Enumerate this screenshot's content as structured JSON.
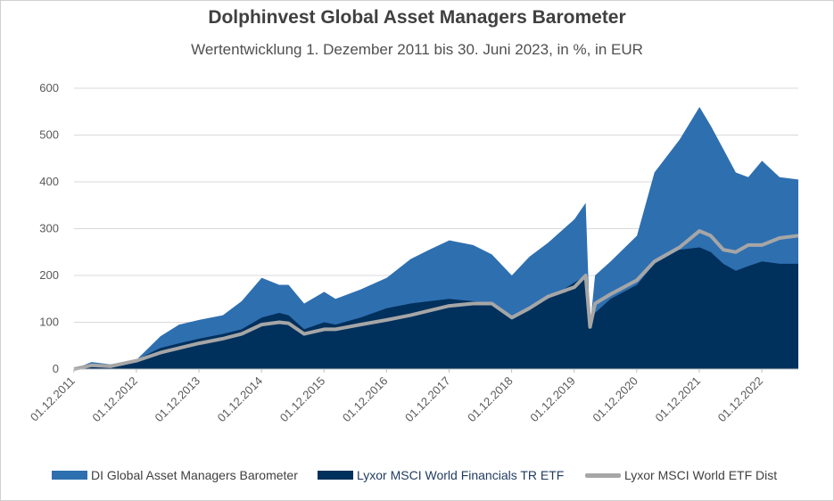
{
  "chart_data": {
    "type": "area",
    "title": "Dolphinvest Global Asset Managers Barometer",
    "subtitle": "Wertentwicklung 1. Dezember 2011 bis 30. Juni 2023, in %, in EUR",
    "xlabel": "",
    "ylabel": "",
    "ylim": [
      0,
      600
    ],
    "y_ticks": [
      "0",
      "100",
      "200",
      "300",
      "400",
      "500",
      "600"
    ],
    "x_ticks": [
      "01.12.2011",
      "01.12.2012",
      "01.12.2013",
      "01.12.2014",
      "01.12.2015",
      "01.12.2016",
      "01.12.2017",
      "01.12.2018",
      "01.12.2019",
      "01.12.2020",
      "01.12.2021",
      "01.12.2022"
    ],
    "grid": true,
    "legend_position": "bottom",
    "x": [
      2011.92,
      2012.2,
      2012.5,
      2012.92,
      2013.3,
      2013.6,
      2013.92,
      2014.3,
      2014.6,
      2014.92,
      2015.2,
      2015.35,
      2015.6,
      2015.92,
      2016.1,
      2016.5,
      2016.92,
      2017.3,
      2017.6,
      2017.92,
      2018.3,
      2018.6,
      2018.92,
      2019.2,
      2019.5,
      2019.92,
      2020.1,
      2020.17,
      2020.25,
      2020.5,
      2020.92,
      2021.2,
      2021.6,
      2021.92,
      2022.1,
      2022.3,
      2022.5,
      2022.7,
      2022.92,
      2023.2,
      2023.5
    ],
    "series": [
      {
        "name": "DI Global Asset Managers Barometer",
        "color": "#2e6fb0",
        "style": "area",
        "values": [
          0,
          15,
          10,
          20,
          70,
          95,
          105,
          115,
          145,
          195,
          180,
          180,
          140,
          165,
          150,
          170,
          195,
          235,
          255,
          275,
          265,
          245,
          200,
          240,
          270,
          320,
          355,
          90,
          200,
          230,
          285,
          420,
          490,
          560,
          520,
          470,
          420,
          410,
          445,
          410,
          405
        ]
      },
      {
        "name": "Lyxor MSCI World Financials TR ETF",
        "color": "#00305c",
        "style": "area",
        "values": [
          0,
          10,
          8,
          20,
          45,
          55,
          65,
          75,
          85,
          110,
          120,
          115,
          85,
          100,
          95,
          110,
          130,
          140,
          145,
          150,
          145,
          140,
          110,
          130,
          150,
          185,
          200,
          95,
          120,
          150,
          180,
          225,
          255,
          260,
          250,
          225,
          210,
          220,
          230,
          225,
          225
        ]
      },
      {
        "name": "Lyxor MSCI World ETF Dist",
        "color": "#a6a6a6",
        "style": "line",
        "values": [
          0,
          8,
          6,
          18,
          35,
          45,
          55,
          65,
          75,
          95,
          100,
          98,
          75,
          85,
          85,
          95,
          105,
          115,
          125,
          135,
          140,
          140,
          110,
          130,
          155,
          175,
          200,
          90,
          140,
          160,
          190,
          230,
          260,
          295,
          285,
          255,
          250,
          265,
          265,
          280,
          285
        ]
      }
    ]
  }
}
